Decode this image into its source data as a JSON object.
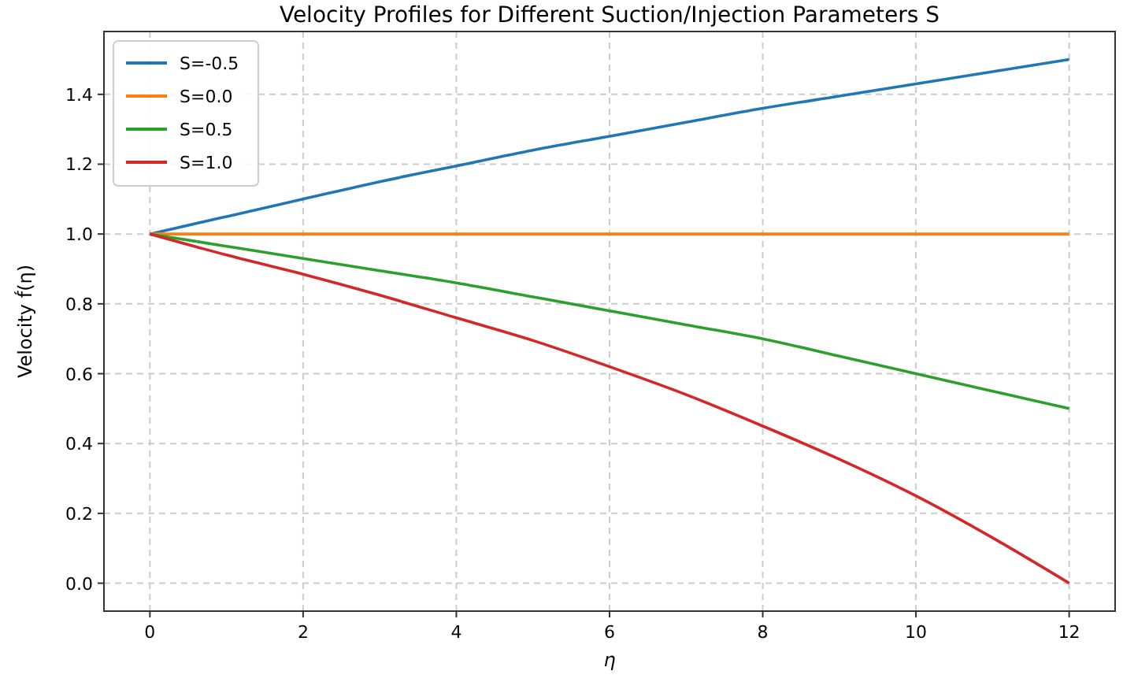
{
  "chart_data": {
    "type": "line",
    "title": "Velocity Profiles for Different Suction/Injection Parameters S",
    "xlabel": "η",
    "ylabel": "Velocity f́(η)",
    "x": [
      0,
      1,
      2,
      3,
      4,
      5,
      6,
      7,
      8,
      9,
      10,
      11,
      12
    ],
    "series": [
      {
        "name": "S=-0.5",
        "color": "#1f77b4",
        "values": [
          1.0,
          1.05,
          1.1,
          1.15,
          1.195,
          1.24,
          1.28,
          1.32,
          1.36,
          1.395,
          1.43,
          1.465,
          1.5
        ]
      },
      {
        "name": "S=0.0",
        "color": "#ff7f0e",
        "values": [
          1,
          1,
          1,
          1,
          1,
          1,
          1,
          1,
          1,
          1,
          1,
          1,
          1
        ]
      },
      {
        "name": "S=0.5",
        "color": "#2ca02c",
        "values": [
          1.0,
          0.965,
          0.93,
          0.895,
          0.86,
          0.82,
          0.78,
          0.74,
          0.7,
          0.65,
          0.6,
          0.55,
          0.5
        ]
      },
      {
        "name": "S=1.0",
        "color": "#d62728",
        "values": [
          1.0,
          0.94,
          0.885,
          0.825,
          0.76,
          0.695,
          0.62,
          0.54,
          0.45,
          0.355,
          0.25,
          0.13,
          0.0
        ]
      }
    ],
    "xlim": [
      -0.6,
      12.6
    ],
    "ylim": [
      -0.08,
      1.58
    ],
    "xticks": [
      0,
      2,
      4,
      6,
      8,
      10,
      12
    ],
    "yticks": [
      {
        "value": 0,
        "label": "0.0"
      },
      {
        "value": 0.2,
        "label": "0.2"
      },
      {
        "value": 0.4,
        "label": "0.4"
      },
      {
        "value": 0.6,
        "label": "0.6"
      },
      {
        "value": 0.8,
        "label": "0.8"
      },
      {
        "value": 1,
        "label": "1.0"
      },
      {
        "value": 1.2,
        "label": "1.2"
      },
      {
        "value": 1.4,
        "label": "1.4"
      }
    ],
    "grid": true,
    "legend": "top left",
    "marker": "none",
    "line_style": "solid"
  }
}
